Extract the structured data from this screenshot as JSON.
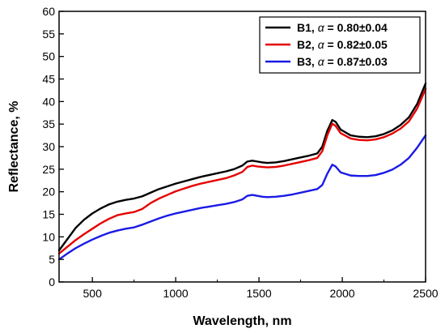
{
  "chart_data": {
    "type": "line",
    "title": "",
    "xlabel": "Wavelength, nm",
    "ylabel": "Reflectance, %",
    "xlim": [
      300,
      2500
    ],
    "ylim": [
      0,
      60
    ],
    "x_ticks": [
      500,
      1000,
      1500,
      2000,
      2500
    ],
    "y_ticks": [
      0,
      5,
      10,
      15,
      20,
      25,
      30,
      35,
      40,
      45,
      50,
      55,
      60
    ],
    "legend_position": "top-right",
    "grid": false,
    "series": [
      {
        "name": "B1, α = 0.80±0.04",
        "label_main": "B1, ",
        "label_alpha": "α",
        "label_value": " = 0.80±0.04",
        "color": "#000000",
        "x": [
          300,
          350,
          400,
          450,
          500,
          550,
          600,
          650,
          700,
          750,
          800,
          850,
          900,
          950,
          1000,
          1050,
          1100,
          1150,
          1200,
          1250,
          1300,
          1350,
          1400,
          1430,
          1460,
          1490,
          1520,
          1550,
          1600,
          1650,
          1700,
          1750,
          1800,
          1850,
          1880,
          1910,
          1940,
          1960,
          1990,
          2050,
          2100,
          2150,
          2200,
          2250,
          2300,
          2350,
          2400,
          2450,
          2500
        ],
        "y": [
          7.0,
          9.5,
          12.0,
          13.8,
          15.2,
          16.3,
          17.2,
          17.8,
          18.2,
          18.5,
          19.0,
          19.8,
          20.6,
          21.2,
          21.8,
          22.3,
          22.8,
          23.3,
          23.7,
          24.1,
          24.5,
          25.0,
          25.8,
          26.7,
          26.9,
          26.7,
          26.5,
          26.4,
          26.5,
          26.8,
          27.2,
          27.6,
          28.0,
          28.5,
          30.0,
          33.5,
          35.9,
          35.5,
          33.8,
          32.5,
          32.2,
          32.1,
          32.3,
          32.8,
          33.6,
          34.8,
          36.5,
          39.5,
          44.0
        ]
      },
      {
        "name": "B2, α = 0.82±0.05",
        "label_main": "B2, ",
        "label_alpha": "α",
        "label_value": " = 0.82±0.05",
        "color": "#e60000",
        "x": [
          300,
          350,
          400,
          450,
          500,
          550,
          600,
          650,
          700,
          750,
          800,
          850,
          900,
          950,
          1000,
          1050,
          1100,
          1150,
          1200,
          1250,
          1300,
          1350,
          1400,
          1430,
          1460,
          1490,
          1520,
          1550,
          1600,
          1650,
          1700,
          1750,
          1800,
          1850,
          1880,
          1910,
          1940,
          1960,
          1990,
          2050,
          2100,
          2150,
          2200,
          2250,
          2300,
          2350,
          2400,
          2450,
          2500
        ],
        "y": [
          6.3,
          7.8,
          9.3,
          10.6,
          11.8,
          13.0,
          14.0,
          14.8,
          15.2,
          15.5,
          16.2,
          17.5,
          18.5,
          19.3,
          20.1,
          20.7,
          21.3,
          21.8,
          22.2,
          22.6,
          23.0,
          23.6,
          24.4,
          25.5,
          25.8,
          25.6,
          25.5,
          25.4,
          25.5,
          25.8,
          26.2,
          26.6,
          27.0,
          27.5,
          29.0,
          32.5,
          35.1,
          34.6,
          33.0,
          31.8,
          31.5,
          31.4,
          31.6,
          32.1,
          32.9,
          34.0,
          35.6,
          38.5,
          42.8
        ]
      },
      {
        "name": "B3, α = 0.87±0.03",
        "label_main": "B3, ",
        "label_alpha": "α",
        "label_value": " = 0.87±0.03",
        "color": "#1a1ae6",
        "x": [
          300,
          350,
          400,
          450,
          500,
          550,
          600,
          650,
          700,
          750,
          800,
          850,
          900,
          950,
          1000,
          1050,
          1100,
          1150,
          1200,
          1250,
          1300,
          1350,
          1400,
          1430,
          1460,
          1490,
          1520,
          1550,
          1600,
          1650,
          1700,
          1750,
          1800,
          1850,
          1880,
          1910,
          1940,
          1960,
          1990,
          2050,
          2100,
          2150,
          2200,
          2250,
          2300,
          2350,
          2400,
          2450,
          2500
        ],
        "y": [
          5.0,
          6.3,
          7.5,
          8.5,
          9.4,
          10.2,
          10.9,
          11.4,
          11.8,
          12.1,
          12.7,
          13.4,
          14.1,
          14.7,
          15.2,
          15.6,
          16.0,
          16.4,
          16.7,
          17.0,
          17.3,
          17.7,
          18.3,
          19.1,
          19.3,
          19.1,
          18.9,
          18.8,
          18.9,
          19.1,
          19.4,
          19.8,
          20.2,
          20.6,
          21.5,
          24.0,
          26.0,
          25.6,
          24.3,
          23.6,
          23.5,
          23.5,
          23.7,
          24.2,
          24.9,
          26.0,
          27.5,
          29.8,
          32.5
        ]
      }
    ]
  }
}
